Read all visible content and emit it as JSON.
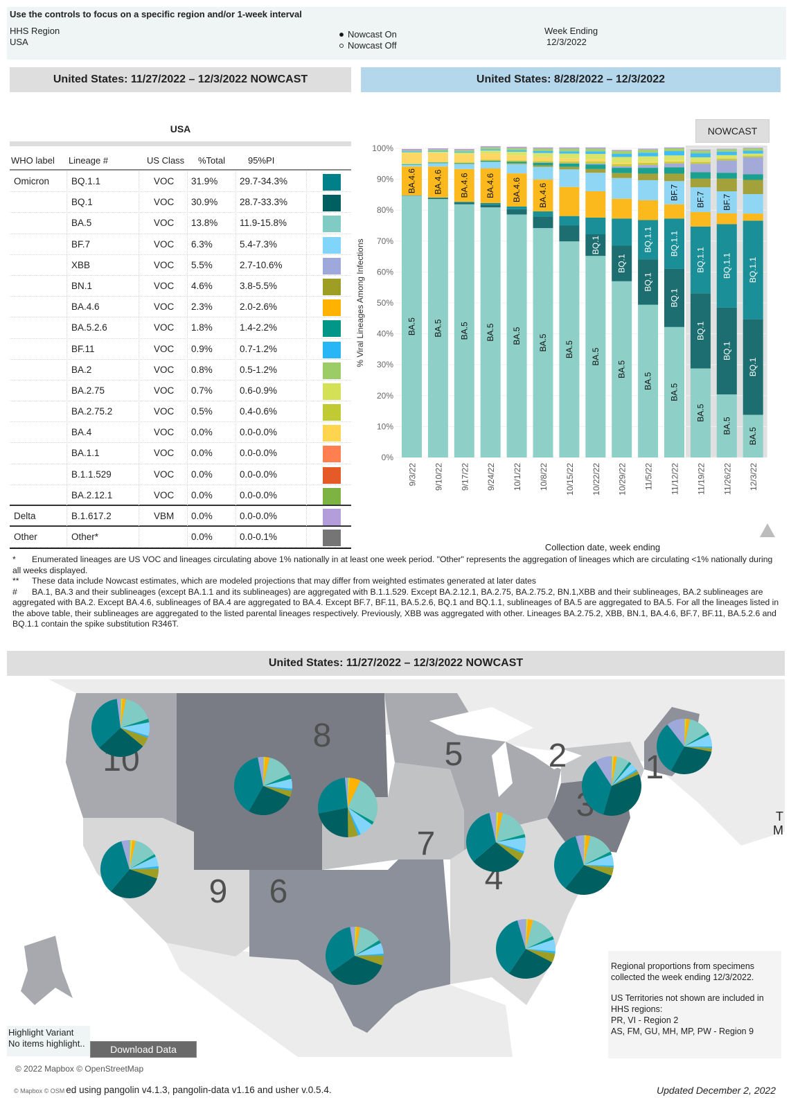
{
  "controls": {
    "hint": "Use the controls to focus on a specific region and/or 1-week interval",
    "region_label": "HHS Region",
    "region_value": "USA",
    "nowcast_on": "Nowcast On",
    "nowcast_off": "Nowcast Off",
    "nowcast_selected": "on",
    "week_label": "Week Ending",
    "week_value": "12/3/2022"
  },
  "headers": {
    "left": "United States: 11/27/2022 – 12/3/2022 NOWCAST",
    "right": "United States: 8/28/2022 – 12/3/2022",
    "map": "United States: 11/27/2022 – 12/3/2022 NOWCAST"
  },
  "table": {
    "title": "USA",
    "columns": [
      "WHO label",
      "Lineage #",
      "US Class",
      "%Total",
      "95%PI"
    ],
    "rows": [
      {
        "who": "Omicron",
        "lineage": "BQ.1.1",
        "cls": "VOC",
        "pct": "31.9%",
        "pi": "29.7-34.3%",
        "color": "#00818a"
      },
      {
        "who": "",
        "lineage": "BQ.1",
        "cls": "VOC",
        "pct": "30.9%",
        "pi": "28.7-33.3%",
        "color": "#005f61"
      },
      {
        "who": "",
        "lineage": "BA.5",
        "cls": "VOC",
        "pct": "13.8%",
        "pi": "11.9-15.8%",
        "color": "#80cbc4"
      },
      {
        "who": "",
        "lineage": "BF.7",
        "cls": "VOC",
        "pct": "6.3%",
        "pi": "5.4-7.3%",
        "color": "#81d4fa"
      },
      {
        "who": "",
        "lineage": "XBB",
        "cls": "VOC",
        "pct": "5.5%",
        "pi": "2.7-10.6%",
        "color": "#9fa8da"
      },
      {
        "who": "",
        "lineage": "BN.1",
        "cls": "VOC",
        "pct": "4.6%",
        "pi": "3.8-5.5%",
        "color": "#9e9d24"
      },
      {
        "who": "",
        "lineage": "BA.4.6",
        "cls": "VOC",
        "pct": "2.3%",
        "pi": "2.0-2.6%",
        "color": "#ffb300"
      },
      {
        "who": "",
        "lineage": "BA.5.2.6",
        "cls": "VOC",
        "pct": "1.8%",
        "pi": "1.4-2.2%",
        "color": "#009688"
      },
      {
        "who": "",
        "lineage": "BF.11",
        "cls": "VOC",
        "pct": "0.9%",
        "pi": "0.7-1.2%",
        "color": "#29b6f6"
      },
      {
        "who": "",
        "lineage": "BA.2",
        "cls": "VOC",
        "pct": "0.8%",
        "pi": "0.5-1.2%",
        "color": "#9ccc65"
      },
      {
        "who": "",
        "lineage": "BA.2.75",
        "cls": "VOC",
        "pct": "0.7%",
        "pi": "0.6-0.9%",
        "color": "#d4e157"
      },
      {
        "who": "",
        "lineage": "BA.2.75.2",
        "cls": "VOC",
        "pct": "0.5%",
        "pi": "0.4-0.6%",
        "color": "#c0ca33"
      },
      {
        "who": "",
        "lineage": "BA.4",
        "cls": "VOC",
        "pct": "0.0%",
        "pi": "0.0-0.0%",
        "color": "#ffd54f"
      },
      {
        "who": "",
        "lineage": "BA.1.1",
        "cls": "VOC",
        "pct": "0.0%",
        "pi": "0.0-0.0%",
        "color": "#ff7f50"
      },
      {
        "who": "",
        "lineage": "B.1.1.529",
        "cls": "VOC",
        "pct": "0.0%",
        "pi": "0.0-0.0%",
        "color": "#e55b28"
      },
      {
        "who": "",
        "lineage": "BA.2.12.1",
        "cls": "VOC",
        "pct": "0.0%",
        "pi": "0.0-0.0%",
        "color": "#7cb342"
      },
      {
        "who": "Delta",
        "lineage": "B.1.617.2",
        "cls": "VBM",
        "pct": "0.0%",
        "pi": "0.0-0.0%",
        "color": "#b39ddb"
      },
      {
        "who": "Other",
        "lineage": "Other*",
        "cls": "",
        "pct": "0.0%",
        "pi": "0.0-0.1%",
        "color": "#757575"
      }
    ]
  },
  "chart_data": {
    "type": "bar",
    "stacked": true,
    "title": "United States: 8/28/2022 – 12/3/2022",
    "xlabel": "Collection date, week ending",
    "ylabel": "% Viral Lineages Among Infections",
    "ylim": [
      0,
      100
    ],
    "yticks": [
      "0%",
      "10%",
      "20%",
      "30%",
      "40%",
      "50%",
      "60%",
      "70%",
      "80%",
      "90%",
      "100%"
    ],
    "grid": true,
    "nowcast_label": "NOWCAST",
    "nowcast_categories": [
      "11/19/22",
      "11/26/22",
      "12/3/22"
    ],
    "categories": [
      "9/3/22",
      "9/10/22",
      "9/17/22",
      "9/24/22",
      "10/1/22",
      "10/8/22",
      "10/15/22",
      "10/22/22",
      "10/29/22",
      "11/5/22",
      "11/12/22",
      "11/19/22",
      "11/26/22",
      "12/3/22"
    ],
    "series": [
      {
        "name": "BA.5",
        "color": "#8ed0c8",
        "label_color": "#111",
        "values": [
          84.7,
          83.6,
          81.9,
          80.9,
          78.6,
          74.2,
          69.9,
          65.2,
          57.0,
          49.4,
          42.2,
          28.8,
          20.4,
          13.8
        ]
      },
      {
        "name": "BQ.1",
        "color": "#1c6e70",
        "label_color": "#fff",
        "values": [
          0.1,
          0.3,
          0.5,
          0.8,
          1.7,
          3.7,
          5.1,
          7.0,
          11.5,
          14.7,
          18.8,
          24.3,
          28.1,
          30.9
        ]
      },
      {
        "name": "BQ.1.1",
        "color": "#1a8f97",
        "label_color": "#fff",
        "values": [
          0.0,
          0.2,
          0.3,
          0.6,
          0.9,
          1.7,
          3.1,
          5.4,
          8.8,
          12.7,
          16.3,
          21.6,
          27.0,
          31.9
        ]
      },
      {
        "name": "BA.4.6",
        "color": "#fbb91d",
        "label_color": "#111",
        "values": [
          9.3,
          10.0,
          10.6,
          11.2,
          10.7,
          10.3,
          9.4,
          8.5,
          6.4,
          6.4,
          4.6,
          4.7,
          3.5,
          2.3
        ]
      },
      {
        "name": "BF.7",
        "color": "#8fd6f5",
        "label_color": "#111",
        "values": [
          0.6,
          1.1,
          1.6,
          2.1,
          3.0,
          4.1,
          5.7,
          6.0,
          6.7,
          6.5,
          7.5,
          8.0,
          7.1,
          6.3
        ]
      },
      {
        "name": "BN.1",
        "color": "#a2a13a",
        "label_color": "#111",
        "values": [
          0.0,
          0.0,
          0.1,
          0.1,
          0.3,
          0.5,
          0.8,
          1.2,
          1.6,
          2.1,
          2.4,
          2.8,
          4.1,
          4.6
        ]
      },
      {
        "name": "BA.5.2.6",
        "color": "#1aa08e",
        "label_color": "#111",
        "values": [
          0.2,
          0.2,
          0.2,
          0.3,
          0.5,
          0.8,
          1.1,
          1.5,
          1.7,
          1.9,
          2.1,
          2.1,
          1.9,
          1.8
        ]
      },
      {
        "name": "XBB",
        "color": "#a4aad8",
        "label_color": "#111",
        "values": [
          0.0,
          0.0,
          0.0,
          0.0,
          0.0,
          0.1,
          0.1,
          0.3,
          0.5,
          0.9,
          1.2,
          2.7,
          4.0,
          5.5
        ]
      },
      {
        "name": "BA.2.75.2",
        "color": "#c4cc3c",
        "label_color": "#111",
        "values": [
          0.1,
          0.1,
          0.2,
          0.3,
          0.4,
          0.5,
          0.6,
          0.7,
          0.7,
          0.7,
          0.6,
          0.6,
          0.6,
          0.5
        ]
      },
      {
        "name": "BA.4",
        "color": "#fdd663",
        "label_color": "#111",
        "values": [
          3.5,
          3.0,
          2.6,
          2.1,
          1.6,
          1.2,
          0.9,
          0.7,
          0.5,
          0.4,
          0.3,
          0.2,
          0.1,
          0.0
        ]
      },
      {
        "name": "BA.2.75",
        "color": "#d9e46a",
        "label_color": "#111",
        "values": [
          0.2,
          0.4,
          0.6,
          0.9,
          1.2,
          1.4,
          1.6,
          1.7,
          1.8,
          1.7,
          1.7,
          1.3,
          1.0,
          0.7
        ]
      },
      {
        "name": "BF.11",
        "color": "#3ebcf3",
        "label_color": "#111",
        "values": [
          0.3,
          0.3,
          0.3,
          0.4,
          0.5,
          0.6,
          0.7,
          0.8,
          1.0,
          1.2,
          1.4,
          1.3,
          1.1,
          0.9
        ]
      },
      {
        "name": "BA.2",
        "color": "#a3d071",
        "label_color": "#111",
        "values": [
          0.3,
          0.4,
          0.5,
          0.6,
          0.7,
          0.8,
          0.9,
          0.9,
          1.0,
          1.0,
          0.9,
          0.9,
          0.8,
          0.8
        ]
      },
      {
        "name": "Other",
        "color": "#b39ddb",
        "label_color": "#111",
        "values": [
          0.5,
          0.4,
          0.4,
          0.4,
          0.4,
          0.4,
          0.4,
          0.4,
          0.3,
          0.3,
          0.3,
          0.3,
          0.2,
          0.2
        ]
      }
    ],
    "labeled_segments": [
      {
        "series": "BA.5",
        "categories": "all"
      },
      {
        "series": "BA.4.6",
        "categories": [
          "9/3/22",
          "9/10/22",
          "9/17/22",
          "9/24/22",
          "10/1/22",
          "10/8/22"
        ]
      },
      {
        "series": "BQ.1",
        "categories": [
          "10/22/22",
          "10/29/22",
          "11/5/22",
          "11/12/22",
          "11/19/22",
          "11/26/22",
          "12/3/22"
        ]
      },
      {
        "series": "BQ.1.1",
        "categories": [
          "11/5/22",
          "11/12/22",
          "11/19/22",
          "11/26/22",
          "12/3/22"
        ]
      },
      {
        "series": "BF.7",
        "categories": [
          "10/29/22",
          "11/5/22",
          "11/12/22",
          "11/19/22",
          "11/26/22"
        ]
      }
    ]
  },
  "notes": [
    {
      "mark": "*",
      "text": "Enumerated lineages are US VOC and lineages circulating above 1% nationally in at least one week period. \"Other\" represents the aggregation of lineages which are circulating <1% nationally during all weeks displayed."
    },
    {
      "mark": "**",
      "text": "These data include Nowcast estimates, which are modeled projections that may differ from weighted estimates generated at later dates"
    },
    {
      "mark": "#",
      "text": "BA.1, BA.3 and their sublineages (except BA.1.1 and its sublineages) are aggregated with B.1.1.529. Except BA.2.12.1, BA.2.75, BA.2.75.2, BN.1,XBB and their sublineages, BA.2 sublineages are aggregated with BA.2. Except BA.4.6, sublineages of BA.4 are aggregated to BA.4. Except BF.7, BF.11, BA.5.2.6, BQ.1 and BQ.1.1, sublineages of BA.5 are aggregated to BA.5. For all the lineages listed in the above table, their sublineages are aggregated to the listed parental lineages respectively. Previously, XBB was aggregated with other. Lineages BA.2.75.2, XBB, BN.1, BA.4.6, BF.7, BF.11, BA.5.2.6 and BQ.1.1 contain the spike substitution R346T."
    }
  ],
  "map": {
    "region_labels": [
      "1",
      "2",
      "3",
      "4",
      "5",
      "6",
      "7",
      "8",
      "9",
      "10"
    ],
    "pie_order": [
      "XBB",
      "BA.2",
      "BA.2.75",
      "BA.4.6",
      "BA.5",
      "BA.5.2.6",
      "BF.7",
      "BF.11",
      "BN.1",
      "BQ.1",
      "BQ.1.1"
    ],
    "pie_colors": [
      "#9fa8da",
      "#9ccc65",
      "#d4e157",
      "#ffb300",
      "#80cbc4",
      "#009688",
      "#81d4fa",
      "#29b6f6",
      "#9e9d24",
      "#005f61",
      "#00818a"
    ],
    "regions": [
      {
        "region": "1",
        "values": [
          10.5,
          0.5,
          0.5,
          2.2,
          13.0,
          1.8,
          7.0,
          1.0,
          2.0,
          30.0,
          31.5
        ]
      },
      {
        "region": "2",
        "values": [
          9.0,
          0.5,
          0.5,
          2.0,
          7.0,
          1.5,
          4.0,
          1.0,
          2.0,
          36.0,
          36.5
        ]
      },
      {
        "region": "3",
        "values": [
          4.5,
          0.5,
          0.5,
          2.5,
          14.0,
          1.8,
          6.0,
          1.0,
          4.5,
          30.0,
          34.7
        ]
      },
      {
        "region": "4",
        "values": [
          4.5,
          0.5,
          0.5,
          3.0,
          14.0,
          1.8,
          6.5,
          1.2,
          5.0,
          27.0,
          36.0
        ]
      },
      {
        "region": "5",
        "values": [
          3.5,
          0.5,
          0.7,
          2.5,
          17.0,
          1.8,
          7.5,
          1.3,
          4.5,
          28.0,
          32.7
        ]
      },
      {
        "region": "6",
        "values": [
          2.5,
          0.5,
          0.5,
          2.0,
          13.0,
          1.8,
          6.0,
          1.0,
          5.5,
          35.0,
          32.2
        ]
      },
      {
        "region": "7",
        "values": [
          1.5,
          0.5,
          0.5,
          6.0,
          26.0,
          1.8,
          8.0,
          1.5,
          5.5,
          22.0,
          26.7
        ]
      },
      {
        "region": "8",
        "values": [
          3.0,
          0.5,
          0.5,
          2.5,
          15.0,
          2.5,
          5.5,
          1.2,
          3.5,
          27.0,
          38.8
        ]
      },
      {
        "region": "9",
        "values": [
          4.5,
          0.7,
          0.7,
          2.0,
          13.0,
          1.5,
          5.5,
          1.3,
          5.5,
          31.0,
          34.3
        ]
      },
      {
        "region": "10",
        "values": [
          2.0,
          0.5,
          0.5,
          2.0,
          17.0,
          2.0,
          7.5,
          1.0,
          5.5,
          27.0,
          35.0
        ]
      }
    ],
    "note_line1": "Regional proportions from specimens collected the week ending 12/3/2022.",
    "note_line2": "US Territories not shown are included in HHS regions:",
    "note_line3": "PR, VI - Region 2",
    "note_line4": "AS, FM, GU, MH, MP, PW - Region 9",
    "highlight_label": "Highlight Variant",
    "highlight_value": "No items highlight..",
    "download_label": "Download Data",
    "credit": "© 2022 Mapbox © OpenStreetMap",
    "side_text_1": "T",
    "side_text_2": "M"
  },
  "footer": {
    "osm": "© Mapbox © OSM",
    "left": "ed using pangolin v4.1.3, pangolin-data v1.16 and usher v.0.5.4.",
    "right": "Updated December 2, 2022"
  }
}
